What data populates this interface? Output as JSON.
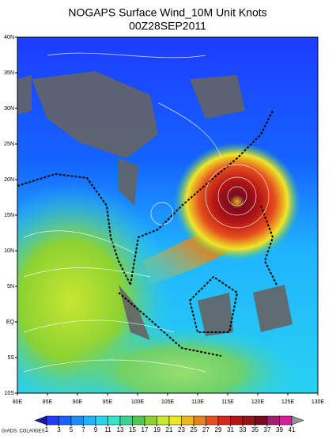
{
  "title": "NOGAPS Surface Wind_10M Unit Knots",
  "subtitle": "00Z28SEP2011",
  "lon_labels": [
    "80E",
    "85E",
    "90E",
    "95E",
    "100E",
    "105E",
    "110E",
    "115E",
    "120E",
    "125E",
    "130E"
  ],
  "lat_labels": [
    "40N",
    "35N",
    "30N",
    "25N",
    "20N",
    "15N",
    "10N",
    "5N",
    "EQ",
    "5S",
    "10S"
  ],
  "colorbar": {
    "levels": [
      1,
      3,
      5,
      7,
      9,
      11,
      13,
      15,
      17,
      19,
      21,
      23,
      25,
      27,
      29,
      31,
      33,
      35,
      37,
      39,
      41
    ],
    "colors": [
      "#1a1aa0",
      "#1e3cff",
      "#1464ff",
      "#1e8cff",
      "#20b4ff",
      "#28d2f0",
      "#32e6c8",
      "#3cd296",
      "#50c850",
      "#8cd232",
      "#c8e632",
      "#f0e628",
      "#f0b41e",
      "#e6821e",
      "#e6501e",
      "#d2281e",
      "#b41414",
      "#961414",
      "#780a1e",
      "#a01e78",
      "#d21ea0",
      "#969696"
    ]
  },
  "credit": "GrADS: COLA/IGES"
}
